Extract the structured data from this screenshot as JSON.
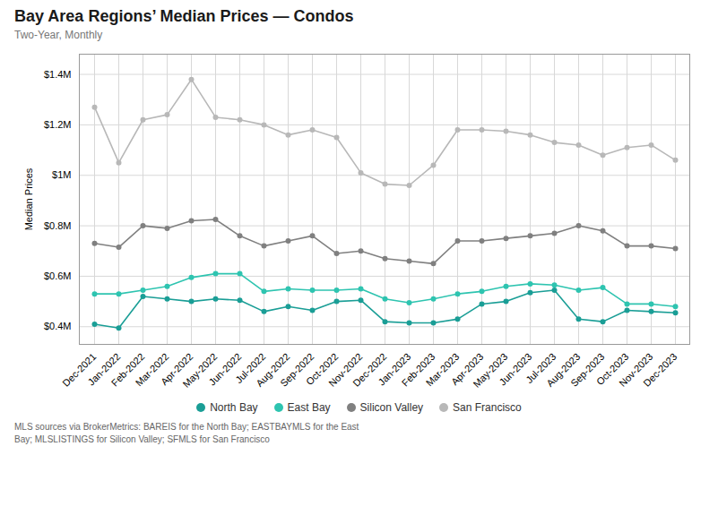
{
  "chart_data": {
    "type": "line",
    "title": "Bay Area Regions’ Median Prices — Condos",
    "subtitle": "Two-Year, Monthly",
    "ylabel": "Median Prices",
    "footnote": [
      "MLS sources via BrokerMetrics: BAREIS for the North Bay; EASTBAYMLS for the East",
      "Bay; MLSLISTINGS for Silicon Valley; SFMLS for San Francisco"
    ],
    "categories": [
      "Dec-2021",
      "Jan-2022",
      "Feb-2022",
      "Mar-2022",
      "Apr-2022",
      "May-2022",
      "Jun-2022",
      "Jul-2022",
      "Aug-2022",
      "Sep-2022",
      "Oct-2022",
      "Nov-2022",
      "Dec-2022",
      "Jan-2023",
      "Feb-2023",
      "Mar-2023",
      "Apr-2023",
      "May-2023",
      "Jun-2023",
      "Jul-2023",
      "Aug-2023",
      "Sep-2023",
      "Oct-2023",
      "Nov-2023",
      "Dec-2023"
    ],
    "series": [
      {
        "name": "North Bay",
        "color": "#1a9e96",
        "values": [
          410000,
          395000,
          520000,
          510000,
          500000,
          510000,
          505000,
          460000,
          480000,
          465000,
          500000,
          505000,
          420000,
          415000,
          415000,
          430000,
          490000,
          500000,
          535000,
          545000,
          430000,
          420000,
          465000,
          460000,
          455000
        ]
      },
      {
        "name": "East Bay",
        "color": "#2ec4b0",
        "values": [
          530000,
          530000,
          545000,
          560000,
          595000,
          610000,
          610000,
          540000,
          550000,
          545000,
          545000,
          550000,
          510000,
          495000,
          510000,
          530000,
          540000,
          560000,
          570000,
          565000,
          545000,
          555000,
          490000,
          490000,
          480000
        ]
      },
      {
        "name": "Silicon Valley",
        "color": "#808080",
        "values": [
          730000,
          715000,
          800000,
          790000,
          820000,
          825000,
          760000,
          720000,
          740000,
          760000,
          690000,
          700000,
          670000,
          660000,
          650000,
          740000,
          740000,
          750000,
          760000,
          770000,
          800000,
          780000,
          720000,
          720000,
          710000
        ]
      },
      {
        "name": "San Francisco",
        "color": "#b8b8b8",
        "values": [
          1270000,
          1050000,
          1220000,
          1240000,
          1380000,
          1230000,
          1220000,
          1200000,
          1160000,
          1180000,
          1150000,
          1010000,
          965000,
          960000,
          1040000,
          1180000,
          1180000,
          1175000,
          1160000,
          1130000,
          1120000,
          1080000,
          1110000,
          1120000,
          1060000
        ]
      }
    ],
    "ylim": [
      330000,
      1480000
    ],
    "yticks": [
      {
        "value": 400000,
        "label": "$0.4M"
      },
      {
        "value": 600000,
        "label": "$0.6M"
      },
      {
        "value": 800000,
        "label": "$0.8M"
      },
      {
        "value": 1000000,
        "label": "$1M"
      },
      {
        "value": 1200000,
        "label": "$1.2M"
      },
      {
        "value": 1400000,
        "label": "$1.4M"
      }
    ],
    "grid": true,
    "legend": "bottom",
    "marker": "circle"
  }
}
